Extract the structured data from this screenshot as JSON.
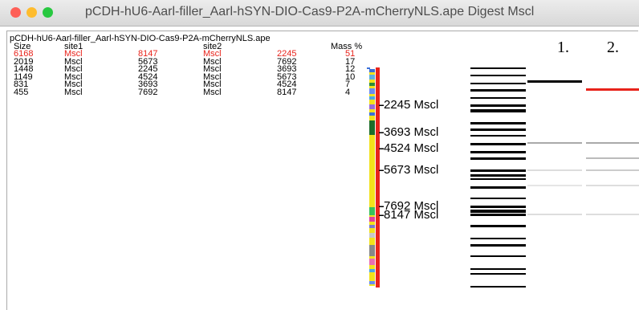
{
  "window": {
    "title": "pCDH-hU6-Aarl-filler_Aarl-hSYN-DIO-Cas9-P2A-mCherryNLS.ape Digest Mscl"
  },
  "table": {
    "caption": "pCDH-hU6-Aarl-filler_Aarl-hSYN-DIO-Cas9-P2A-mCherryNLS.ape",
    "headers": [
      "Size",
      "site1",
      "site2",
      "Mass %"
    ],
    "rows": [
      [
        6168,
        "Mscl",
        8147,
        "Mscl",
        2245,
        51
      ],
      [
        2019,
        "Mscl",
        5673,
        "Mscl",
        7692,
        17
      ],
      [
        1448,
        "Mscl",
        2245,
        "Mscl",
        3693,
        12
      ],
      [
        1149,
        "Mscl",
        4524,
        "Mscl",
        5673,
        10
      ],
      [
        831,
        "Mscl",
        3693,
        "Mscl",
        4524,
        7
      ],
      [
        455,
        "Mscl",
        7692,
        "Mscl",
        8147,
        4
      ]
    ]
  },
  "map": {
    "site_labels": [
      "2245 Mscl",
      "3693 Mscl",
      "4524 Mscl",
      "5673 Mscl",
      "7692 Mscl",
      "8147 Mscl"
    ]
  },
  "gel": {
    "lanes": [
      "1.",
      "2."
    ]
  }
}
